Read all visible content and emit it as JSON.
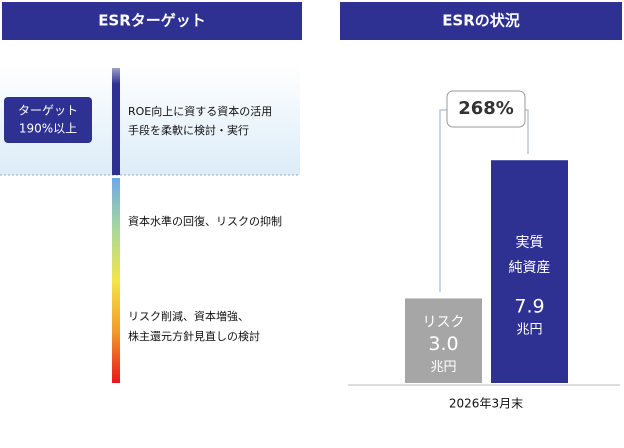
{
  "left": {
    "header": "ESRターゲット",
    "target": [
      "ターゲット",
      "190%以上"
    ],
    "levels": [
      [
        "ROE向上に資する資本の活用",
        "手段を柔軟に検討・実行"
      ],
      [
        "資本水準の回復、リスクの抑制"
      ],
      [
        "リスク削減、資本増強、",
        "株主還元方針見直しの検討"
      ]
    ]
  },
  "chart_data": {
    "type": "bar",
    "title": "ESRの状況",
    "categories": [
      "2026年3月末"
    ],
    "ylim": [
      0,
      10
    ],
    "annotation": "268%",
    "series": [
      {
        "name": [
          "リスク"
        ],
        "color": "#a6a6a6",
        "values": [
          3.0
        ],
        "value_labels": [
          "3.0"
        ],
        "unit": "兆円"
      },
      {
        "name": [
          "実質",
          "純資産"
        ],
        "color": "#2e3192",
        "values": [
          7.9
        ],
        "value_labels": [
          "7.9"
        ],
        "unit": "兆円"
      }
    ]
  }
}
